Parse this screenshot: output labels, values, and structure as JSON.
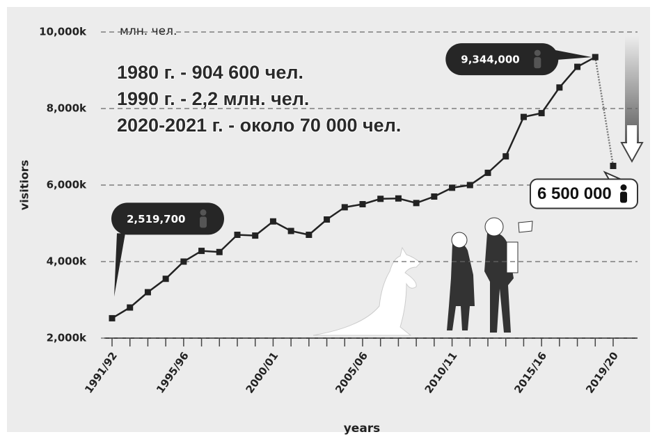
{
  "chart_data": {
    "type": "line",
    "unit_note": "млн. чел.",
    "annotations": [
      "1980 г. - 904 600 чел.",
      "1990 г. - 2,2 млн. чел.",
      "2020-2021 г. - около 70 000 чел."
    ],
    "x_label": "years",
    "y_label": "visitiors",
    "categories": [
      "1991/92",
      null,
      null,
      null,
      "1995/96",
      null,
      null,
      null,
      null,
      "2000/01",
      null,
      null,
      null,
      null,
      "2005/06",
      null,
      null,
      null,
      null,
      "2010/11",
      null,
      null,
      null,
      null,
      "2015/16",
      null,
      null,
      null,
      "2019/20"
    ],
    "values": [
      2519.7,
      2800,
      3200,
      3550,
      4000,
      4280,
      4250,
      4700,
      4680,
      5050,
      4800,
      4700,
      5100,
      5420,
      5500,
      5640,
      5650,
      5530,
      5700,
      5930,
      6000,
      6320,
      6750,
      7780,
      7880,
      8550,
      9090,
      9344,
      6500
    ],
    "value_labels": [
      "2,519,700",
      null,
      null,
      null,
      null,
      null,
      null,
      null,
      null,
      null,
      null,
      null,
      null,
      null,
      null,
      null,
      null,
      null,
      null,
      null,
      null,
      null,
      null,
      null,
      null,
      null,
      null,
      "9,344,000",
      "6 500 000"
    ],
    "last_segment_dotted": true,
    "color": "#222222",
    "ylim": [
      2000,
      10000
    ],
    "yticks": [
      {
        "value": 2000,
        "label": "2,000k"
      },
      {
        "value": 4000,
        "label": "4,000k"
      },
      {
        "value": 6000,
        "label": "6,000k"
      },
      {
        "value": 8000,
        "label": "8,000k"
      },
      {
        "value": 10000,
        "label": "10,000k"
      }
    ],
    "grid": true
  }
}
